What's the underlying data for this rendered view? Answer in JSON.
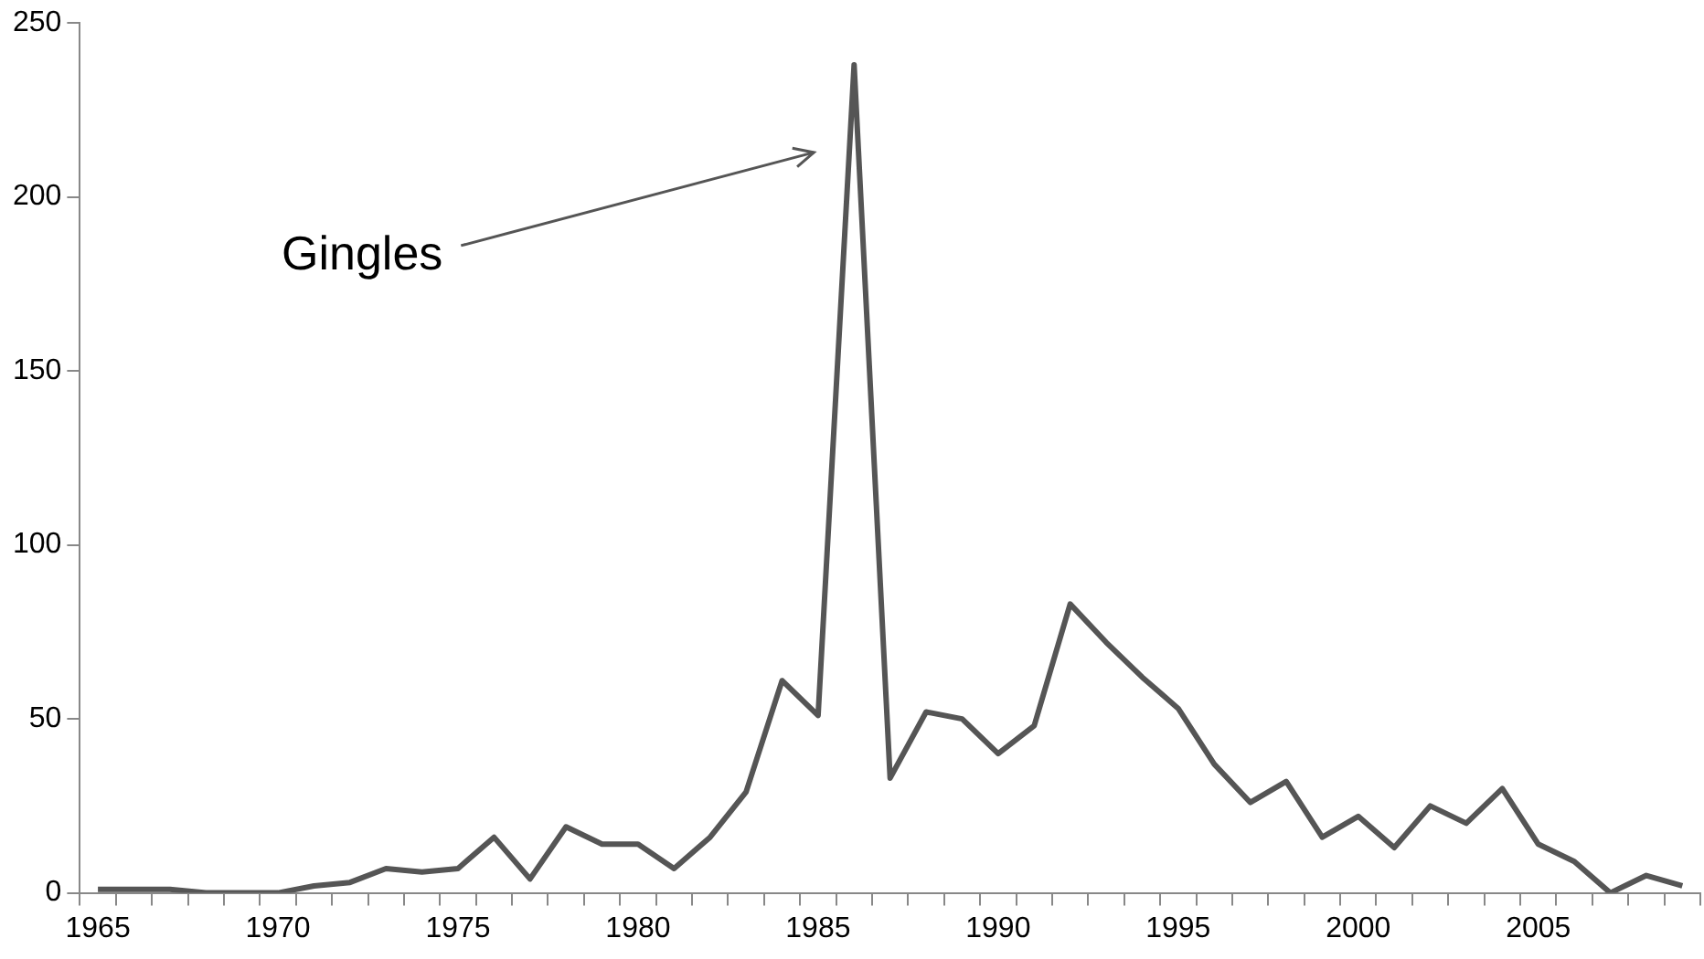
{
  "chart_data": {
    "type": "line",
    "categories": [
      "1965",
      null,
      null,
      null,
      null,
      "1970",
      null,
      null,
      null,
      null,
      "1975",
      null,
      null,
      null,
      null,
      "1980",
      null,
      null,
      null,
      null,
      "1985",
      null,
      null,
      null,
      null,
      "1990",
      null,
      null,
      null,
      null,
      "1995",
      null,
      null,
      null,
      null,
      "2000",
      null,
      null,
      null,
      null,
      "2005",
      null,
      null,
      null,
      null
    ],
    "values": [
      1,
      1,
      1,
      0,
      0,
      0,
      2,
      3,
      7,
      6,
      7,
      16,
      4,
      19,
      14,
      14,
      7,
      16,
      29,
      61,
      51,
      238,
      33,
      52,
      50,
      40,
      48,
      83,
      72,
      62,
      53,
      37,
      26,
      32,
      16,
      22,
      13,
      25,
      20,
      30,
      14,
      9,
      0,
      5,
      2
    ],
    "color": "#555555",
    "ylim": [
      0,
      250
    ],
    "yticks": [
      0,
      50,
      100,
      150,
      200,
      250
    ],
    "grid": false,
    "legend": false,
    "marker": "none",
    "line_style": "solid",
    "annotations": [
      "Gingles"
    ]
  }
}
